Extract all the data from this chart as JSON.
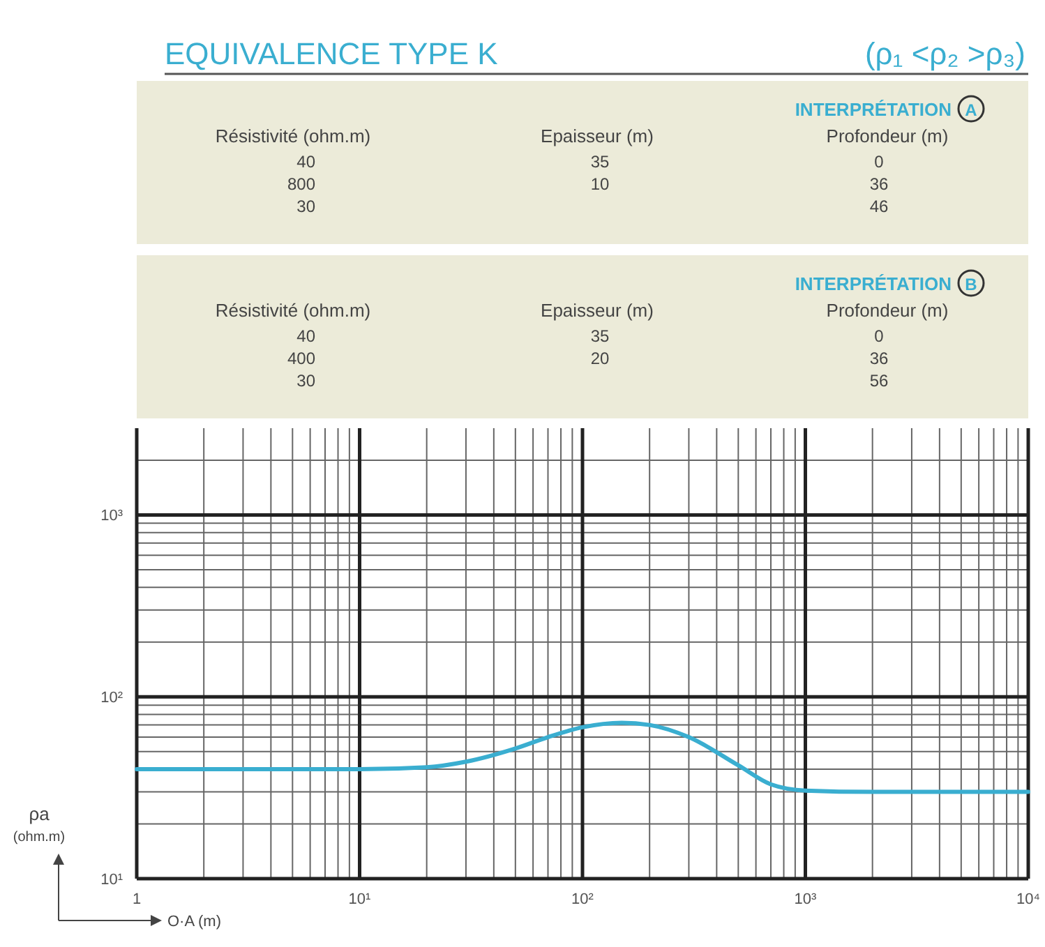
{
  "chart_data": {
    "type": "line",
    "title": "EQUIVALENCE TYPE K",
    "subtitle": "(ρ₁ <ρ₂ >ρ₃)",
    "xlabel": "O·A (m)",
    "ylabel": "ρa (ohm.m)",
    "annotations": [
      "INTERPRÉTATION",
      "A",
      "Résistivité (ohm.m)",
      "Epaisseur (m)",
      "Profondeur (m)",
      "40",
      "35",
      "0",
      "800",
      "10",
      "36",
      "30",
      "46",
      "INTERPRÉTATION",
      "B",
      "Résistivité (ohm.m)",
      "Epaisseur (m)",
      "Profondeur (m)",
      "40",
      "35",
      "0",
      "400",
      "20",
      "36",
      "30",
      "56"
    ],
    "log": "xy",
    "grid": true,
    "xlim": [
      1,
      10000
    ],
    "ylim": [
      10,
      3000
    ],
    "xticks": [
      1,
      {
        "value": 10,
        "label": "10¹"
      },
      {
        "value": 100,
        "label": "10²"
      },
      {
        "value": 1000,
        "label": "10³"
      },
      {
        "value": 10000,
        "label": "10⁴"
      }
    ],
    "yticks": [
      {
        "value": 10,
        "label": "10¹"
      },
      {
        "value": 100,
        "label": "10²"
      },
      {
        "value": 1000,
        "label": "10³"
      }
    ],
    "series": [
      {
        "color": "#3aaed0",
        "x": [
          1,
          5,
          10,
          20,
          30,
          50,
          70,
          100,
          150,
          200,
          300,
          500,
          700,
          1000,
          2000,
          10000
        ],
        "values": [
          40,
          40,
          40,
          41,
          44,
          52,
          60,
          68,
          72,
          70,
          60,
          42,
          33,
          30.5,
          30,
          30
        ]
      }
    ]
  }
}
